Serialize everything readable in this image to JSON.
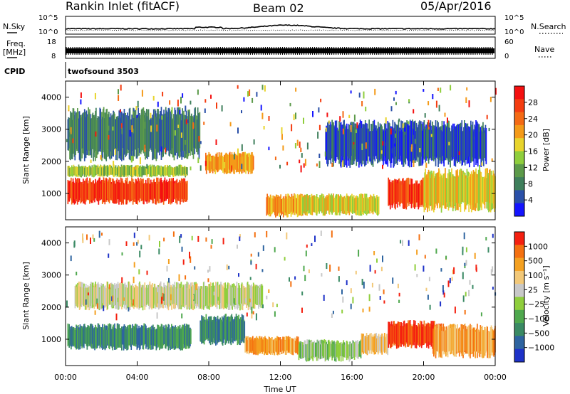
{
  "header": {
    "station": "Rankin Inlet (fitACF)",
    "beam": "Beam 02",
    "date": "05/Apr/2016"
  },
  "summary_panels": {
    "nsky_label": "N.Sky",
    "nsearch_label": "N.Search",
    "freq_label": "Freq.",
    "freq_unit": "[MHz]",
    "nave_label": "Nave",
    "cpid_label": "CPID",
    "cpid_value": "twofsound 3503",
    "noise_ticks_left": [
      "10^5",
      "10^0"
    ],
    "noise_ticks_right": [
      "10^5",
      "10^0"
    ],
    "freq_ticks": [
      "18",
      "8"
    ],
    "nave_ticks": [
      "60",
      "0"
    ]
  },
  "chart_data": [
    {
      "type": "heatmap",
      "name": "power",
      "ylabel": "Slant Range [km]",
      "ylim": [
        180,
        4500
      ],
      "yticks": [
        1000,
        2000,
        3000,
        4000
      ],
      "xlim": [
        0,
        24
      ],
      "xticks": [
        "00:00",
        "04:00",
        "08:00",
        "12:00",
        "16:00",
        "20:00",
        "00:00"
      ],
      "colorbar": {
        "label": "Power [dB]",
        "ticks": [
          "4",
          "8",
          "12",
          "16",
          "20",
          "24",
          "28"
        ],
        "colors": [
          "#1414ff",
          "#2a50a8",
          "#3f7f5c",
          "#5c9a4a",
          "#8fce3c",
          "#e8d42c",
          "#f49a18",
          "#f46a14",
          "#f43c10",
          "#f41010"
        ]
      },
      "regions": [
        {
          "t0": 0.1,
          "t1": 6.8,
          "r0": 650,
          "r1": 1500,
          "level": 8
        },
        {
          "t0": 0.1,
          "t1": 6.8,
          "r0": 1500,
          "r1": 1900,
          "level": 4
        },
        {
          "t0": 0.1,
          "t1": 7.5,
          "r0": 2000,
          "r1": 3700,
          "level": 2
        },
        {
          "t0": 7.8,
          "t1": 10.5,
          "r0": 1600,
          "r1": 2300,
          "level": 6
        },
        {
          "t0": 11.2,
          "t1": 13.5,
          "r0": 250,
          "r1": 1000,
          "level": 6
        },
        {
          "t0": 13.0,
          "t1": 17.5,
          "r0": 300,
          "r1": 1000,
          "level": 5
        },
        {
          "t0": 18.0,
          "t1": 20.5,
          "r0": 500,
          "r1": 1500,
          "level": 8
        },
        {
          "t0": 20.0,
          "t1": 24.0,
          "r0": 400,
          "r1": 1800,
          "level": 5
        },
        {
          "t0": 14.5,
          "t1": 23.5,
          "r0": 1800,
          "r1": 3300,
          "level": 1
        }
      ]
    },
    {
      "type": "heatmap",
      "name": "velocity",
      "ylabel": "Slant Range [km]",
      "ylim": [
        180,
        4500
      ],
      "yticks": [
        1000,
        2000,
        3000,
        4000
      ],
      "xlim": [
        0,
        24
      ],
      "xlabel": "Time UT",
      "xticks": [
        "00:00",
        "04:00",
        "08:00",
        "12:00",
        "16:00",
        "20:00",
        "00:00"
      ],
      "colorbar": {
        "label": "Velocity [m s⁻¹]",
        "ticks": [
          "1000",
          "500",
          "100",
          "25",
          "−25",
          "−100",
          "−500",
          "−1000"
        ],
        "colors": [
          "#1e32c8",
          "#2e64a0",
          "#3a8a64",
          "#4fa84e",
          "#8fce3c",
          "#c8c8c8",
          "#f2c878",
          "#f4a020",
          "#f47010",
          "#f42010"
        ]
      },
      "regions": [
        {
          "t0": 0.1,
          "t1": 7.0,
          "r0": 650,
          "r1": 1500,
          "level": 2
        },
        {
          "t0": 7.5,
          "t1": 10.0,
          "r0": 800,
          "r1": 1800,
          "level": 2
        },
        {
          "t0": 0.5,
          "t1": 11.0,
          "r0": 1900,
          "r1": 2800,
          "level": 5
        },
        {
          "t0": 10.0,
          "t1": 13.0,
          "r0": 500,
          "r1": 1100,
          "level": 7
        },
        {
          "t0": 13.0,
          "t1": 16.5,
          "r0": 300,
          "r1": 1000,
          "level": 4
        },
        {
          "t0": 16.5,
          "t1": 18.0,
          "r0": 500,
          "r1": 1200,
          "level": 6
        },
        {
          "t0": 18.0,
          "t1": 21.0,
          "r0": 700,
          "r1": 1600,
          "level": 9
        },
        {
          "t0": 20.5,
          "t1": 24.0,
          "r0": 400,
          "r1": 1500,
          "level": 7
        }
      ]
    }
  ],
  "xlabel": "Time UT"
}
